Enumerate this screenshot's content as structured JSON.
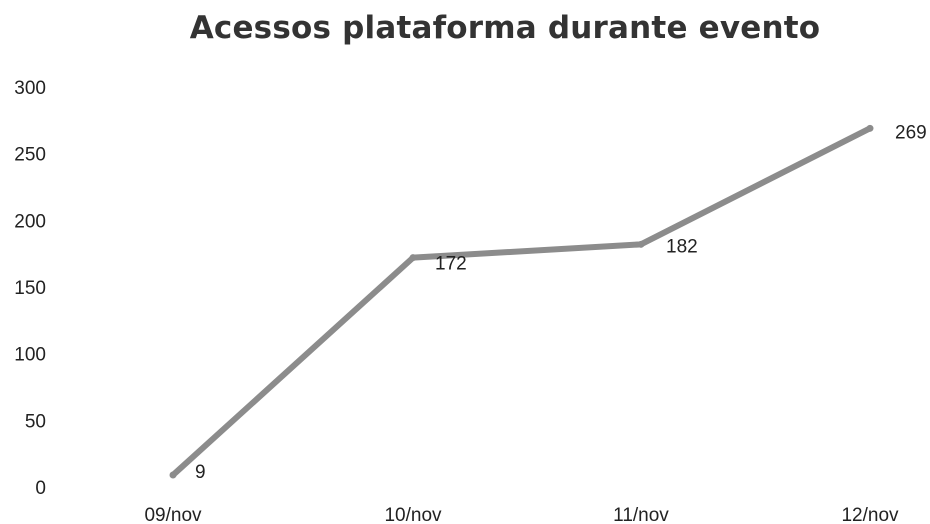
{
  "chart_data": {
    "type": "line",
    "title": "Acessos plataforma durante evento",
    "xlabel": "",
    "ylabel": "",
    "categories": [
      "09/nov",
      "10/nov",
      "11/nov",
      "12/nov"
    ],
    "series": [
      {
        "values": [
          9,
          172,
          182,
          269
        ],
        "color": "#8c8c8c"
      }
    ],
    "data_labels": [
      "9",
      "172",
      "182",
      "269"
    ],
    "ylim": [
      0,
      300
    ],
    "yticks": [
      0,
      50,
      100,
      150,
      200,
      250,
      300
    ],
    "ytick_labels": [
      "0",
      "50",
      "100",
      "150",
      "200",
      "250",
      "300"
    ],
    "grid": false,
    "legend": "none"
  }
}
